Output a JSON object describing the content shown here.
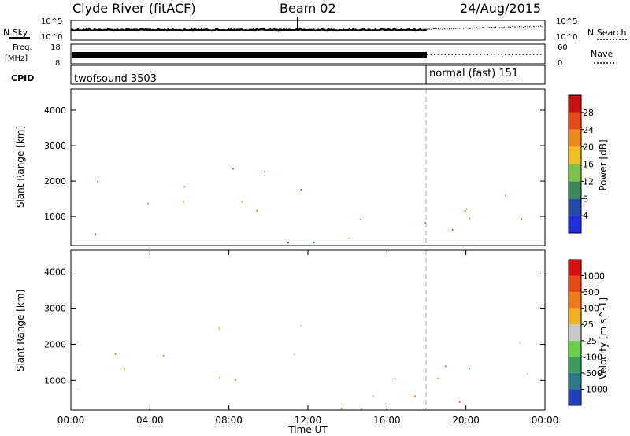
{
  "header": {
    "title": "Clyde River (fitACF)",
    "beam": "Beam 02",
    "date": "24/Aug/2015"
  },
  "top_panels": {
    "nsky_label": "N.Sky",
    "nsky_ticks": [
      "10^5",
      "10^0"
    ],
    "nsearch_label": "N.Search",
    "nsearch_ticks": [
      "10^5",
      "10^0"
    ],
    "freq_label_1": "Freq.",
    "freq_label_2": "[MHz]",
    "freq_ticks": [
      "18",
      "8"
    ],
    "nave_label": "Nave",
    "nave_ticks": [
      "60",
      "0"
    ],
    "cpid_label": "CPID",
    "cpid_segments": [
      {
        "label": "twofsound 3503",
        "start_hour": 0
      },
      {
        "label": "normal (fast) 151",
        "start_hour": 18.0
      }
    ]
  },
  "chart_data": [
    {
      "type": "heatmap",
      "name": "power",
      "xlabel": "",
      "ylabel": "Slant Range [km]",
      "xlim": [
        0,
        24
      ],
      "ylim": [
        180,
        4600
      ],
      "yticks": [
        "1000",
        "2000",
        "3000",
        "4000"
      ],
      "colorbar_label": "Power [dB]",
      "colorbar_ticks": [
        "4",
        "8",
        "12",
        "16",
        "20",
        "24",
        "28"
      ],
      "colorbar_colors": [
        "#1f2fe0",
        "#234ea8",
        "#3a8a5a",
        "#7cc24a",
        "#f0c020",
        "#f08a1a",
        "#e84a14",
        "#cc1010"
      ],
      "vertical_marker_hour": 18.0
    },
    {
      "type": "heatmap",
      "name": "velocity",
      "xlabel": "Time UT",
      "ylabel": "Slant Range [km]",
      "xlim": [
        0,
        24
      ],
      "ylim": [
        180,
        4600
      ],
      "xticks": [
        "00:00",
        "04:00",
        "08:00",
        "12:00",
        "16:00",
        "20:00",
        "00:00"
      ],
      "yticks": [
        "1000",
        "2000",
        "3000",
        "4000"
      ],
      "colorbar_label": "Velocity [m s^-1]",
      "colorbar_ticks": [
        "1000",
        "500",
        "100",
        "25",
        "-25",
        "-100",
        "-500",
        "-1000"
      ],
      "colorbar_colors": [
        "#2040c0",
        "#2a7a8a",
        "#3a9a5a",
        "#6ad04a",
        "#c8c8c8",
        "#f0b020",
        "#f07a1a",
        "#e84a14",
        "#d81010"
      ],
      "vertical_marker_hour": 18.0
    }
  ]
}
